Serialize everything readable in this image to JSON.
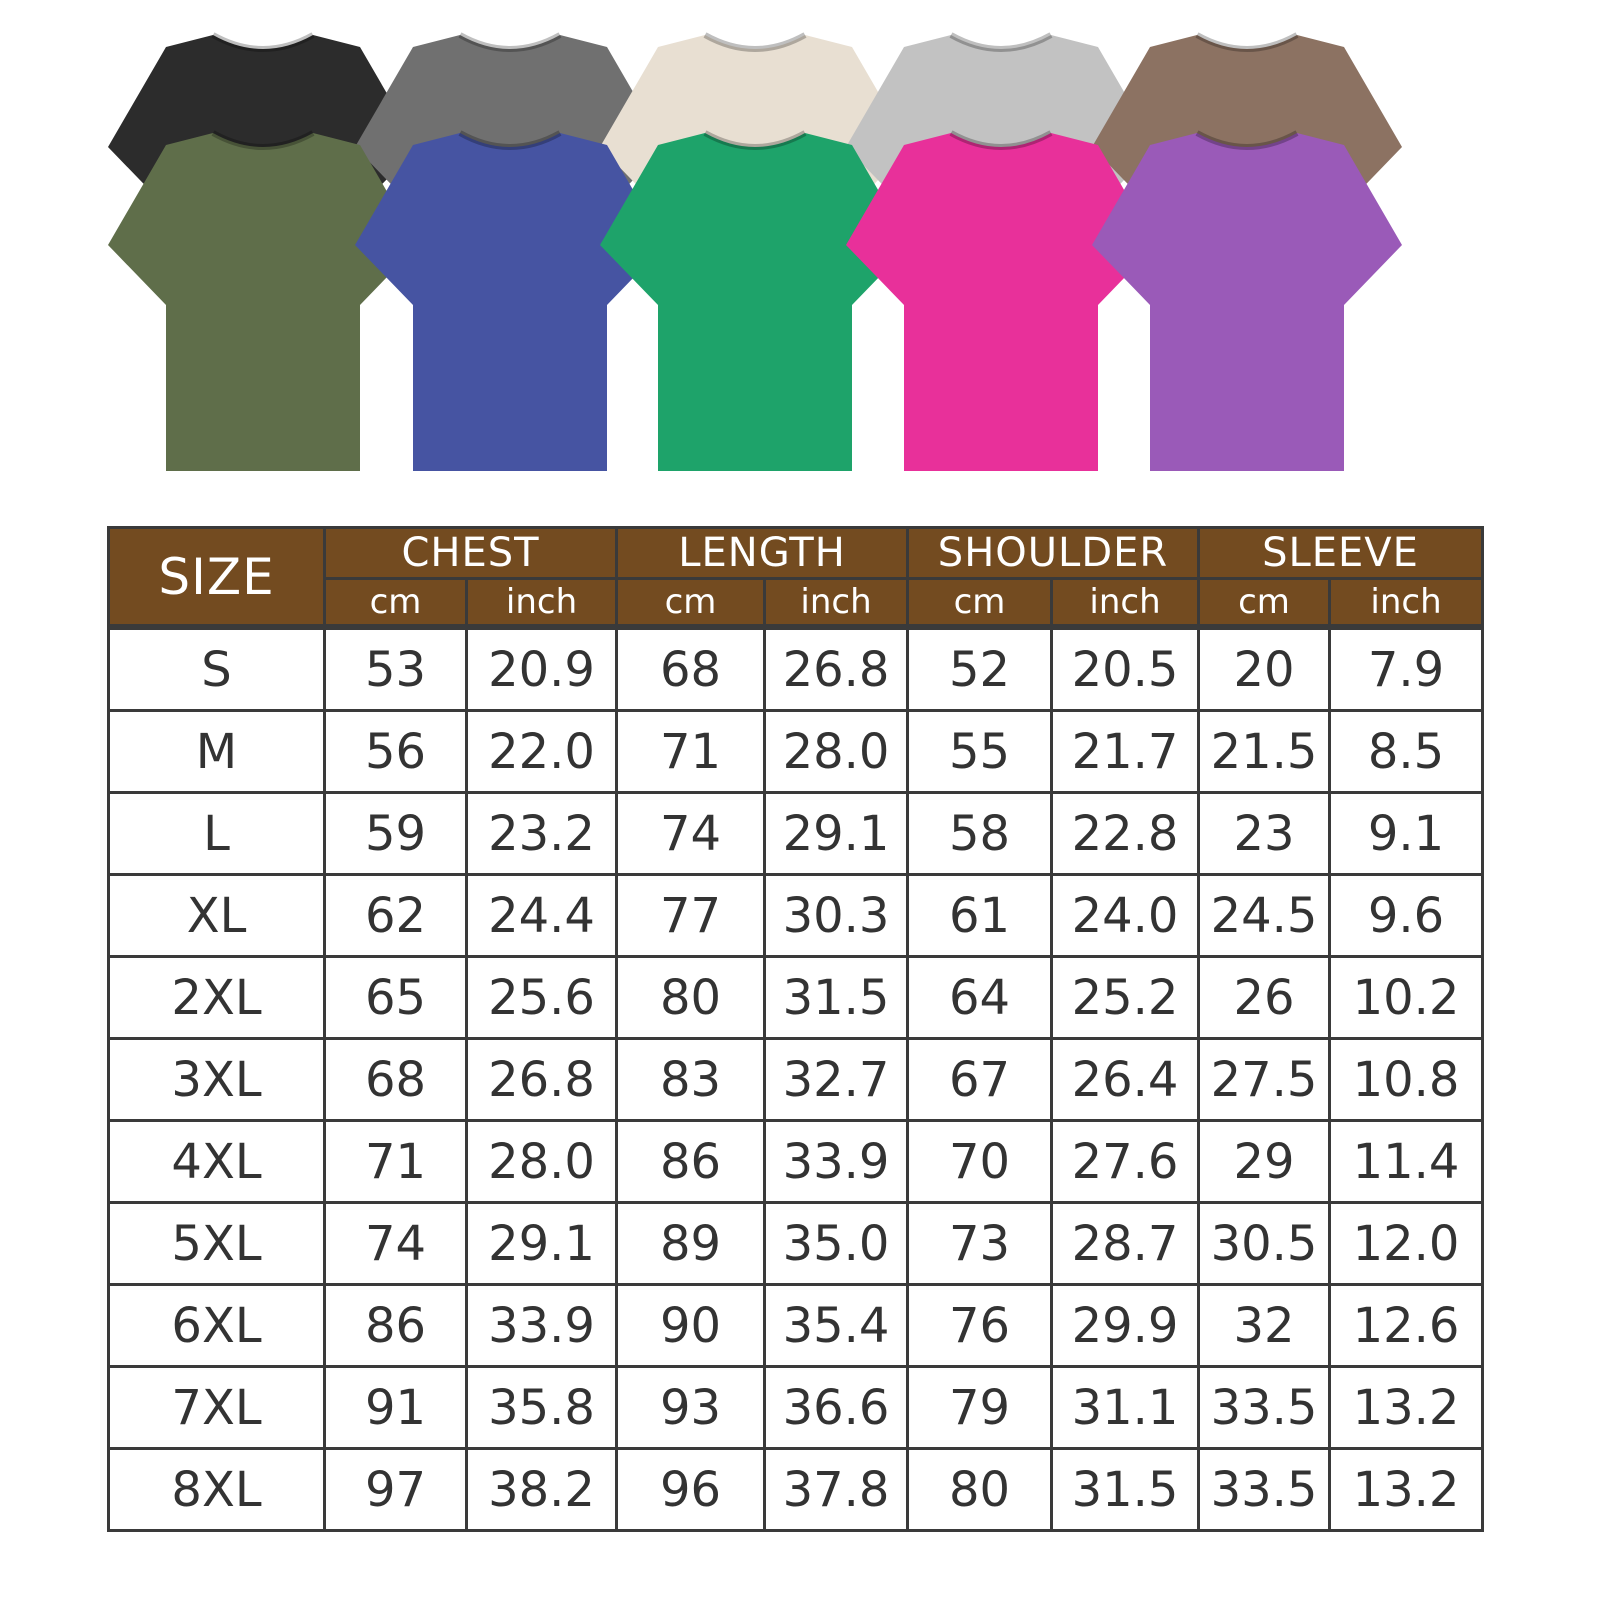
{
  "shirts": {
    "back_row": [
      {
        "color": "#2c2c2c",
        "name": "black"
      },
      {
        "color": "#707070",
        "name": "gray"
      },
      {
        "color": "#e8dfd2",
        "name": "cream"
      },
      {
        "color": "#c2c2c2",
        "name": "light-gray"
      },
      {
        "color": "#8c7262",
        "name": "brown"
      }
    ],
    "front_row": [
      {
        "color": "#5f6e4a",
        "name": "olive"
      },
      {
        "color": "#4654a2",
        "name": "blue"
      },
      {
        "color": "#1ea36a",
        "name": "green"
      },
      {
        "color": "#e8309a",
        "name": "pink"
      },
      {
        "color": "#9a5ab8",
        "name": "purple"
      }
    ]
  },
  "table": {
    "header_color": "#734b20",
    "size_label": "SIZE",
    "groups": [
      "CHEST",
      "LENGTH",
      "SHOULDER",
      "SLEEVE"
    ],
    "units": [
      "cm",
      "inch"
    ],
    "rows": [
      [
        "S",
        "53",
        "20.9",
        "68",
        "26.8",
        "52",
        "20.5",
        "20",
        "7.9"
      ],
      [
        "M",
        "56",
        "22.0",
        "71",
        "28.0",
        "55",
        "21.7",
        "21.5",
        "8.5"
      ],
      [
        "L",
        "59",
        "23.2",
        "74",
        "29.1",
        "58",
        "22.8",
        "23",
        "9.1"
      ],
      [
        "XL",
        "62",
        "24.4",
        "77",
        "30.3",
        "61",
        "24.0",
        "24.5",
        "9.6"
      ],
      [
        "2XL",
        "65",
        "25.6",
        "80",
        "31.5",
        "64",
        "25.2",
        "26",
        "10.2"
      ],
      [
        "3XL",
        "68",
        "26.8",
        "83",
        "32.7",
        "67",
        "26.4",
        "27.5",
        "10.8"
      ],
      [
        "4XL",
        "71",
        "28.0",
        "86",
        "33.9",
        "70",
        "27.6",
        "29",
        "11.4"
      ],
      [
        "5XL",
        "74",
        "29.1",
        "89",
        "35.0",
        "73",
        "28.7",
        "30.5",
        "12.0"
      ],
      [
        "6XL",
        "86",
        "33.9",
        "90",
        "35.4",
        "76",
        "29.9",
        "32",
        "12.6"
      ],
      [
        "7XL",
        "91",
        "35.8",
        "93",
        "36.6",
        "79",
        "31.1",
        "33.5",
        "13.2"
      ],
      [
        "8XL",
        "97",
        "38.2",
        "96",
        "37.8",
        "80",
        "31.5",
        "33.5",
        "13.2"
      ]
    ]
  }
}
